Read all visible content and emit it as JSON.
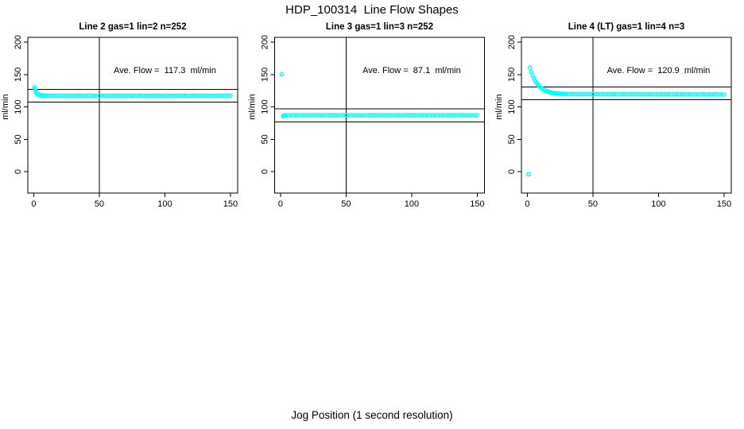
{
  "page": {
    "main_title": "HDP_100314  Line Flow Shapes",
    "footer_xlabel": "Jog Position (1 second resolution)"
  },
  "colors": {
    "points": "#00FFFF",
    "axis": "#000000",
    "background": "#FFFFFF"
  },
  "chart_data": [
    {
      "type": "scatter",
      "title": "Line 2 gas=1 lin=2 n=252",
      "annotation": "Ave. Flow =  117.3  ml/min",
      "ave_flow_ml_min": 117.3,
      "n": 252,
      "ylabel": "ml/min",
      "xlabel": "",
      "x_ticks": [
        0,
        50,
        100,
        150
      ],
      "y_ticks": [
        0,
        50,
        100,
        150,
        200
      ],
      "xlim": [
        -4.5,
        155.5
      ],
      "ylim": [
        -33,
        207.5
      ],
      "grid": false,
      "vline_x": 50,
      "hlines": [
        127.3,
        107.3
      ],
      "annotation_pos": [
        100,
        152
      ],
      "points": [
        [
          0.5,
          130.4
        ],
        [
          1,
          127.2
        ],
        [
          1.5,
          124.4
        ],
        [
          2,
          122.2
        ],
        [
          2.5,
          120.6
        ],
        [
          3,
          119.6
        ],
        [
          3.5,
          119.0
        ],
        [
          4,
          118.6
        ],
        [
          4.5,
          118.3
        ],
        [
          5,
          118.1
        ],
        [
          5.5,
          117.9
        ],
        [
          6,
          117.8
        ],
        [
          7,
          117.6
        ],
        [
          8,
          117.5
        ],
        [
          9,
          117.4
        ],
        [
          10,
          117.3
        ],
        [
          12,
          117.5
        ],
        [
          14,
          117.2
        ],
        [
          16,
          117.4
        ],
        [
          18,
          117.1
        ],
        [
          20,
          117.3
        ],
        [
          22,
          117.5
        ],
        [
          24,
          117.2
        ],
        [
          26,
          117.4
        ],
        [
          28,
          117.1
        ],
        [
          30,
          117.3
        ],
        [
          32,
          117.5
        ],
        [
          34,
          117.2
        ],
        [
          36,
          117.4
        ],
        [
          38,
          117.1
        ],
        [
          40,
          117.3
        ],
        [
          42,
          117.5
        ],
        [
          44,
          117.2
        ],
        [
          46,
          117.4
        ],
        [
          48,
          117.1
        ],
        [
          50,
          117.3
        ],
        [
          52,
          117.5
        ],
        [
          54,
          117.2
        ],
        [
          56,
          117.4
        ],
        [
          58,
          117.1
        ],
        [
          60,
          117.3
        ],
        [
          62,
          117.5
        ],
        [
          64,
          117.2
        ],
        [
          66,
          117.4
        ],
        [
          68,
          117.1
        ],
        [
          70,
          117.3
        ],
        [
          72,
          117.5
        ],
        [
          74,
          117.2
        ],
        [
          76,
          117.4
        ],
        [
          78,
          117.1
        ],
        [
          80,
          117.3
        ],
        [
          82,
          117.5
        ],
        [
          84,
          117.2
        ],
        [
          86,
          117.4
        ],
        [
          88,
          117.1
        ],
        [
          90,
          117.3
        ],
        [
          92,
          117.5
        ],
        [
          94,
          117.2
        ],
        [
          96,
          117.4
        ],
        [
          98,
          117.1
        ],
        [
          100,
          117.3
        ],
        [
          102,
          117.5
        ],
        [
          104,
          117.2
        ],
        [
          106,
          117.4
        ],
        [
          108,
          117.1
        ],
        [
          110,
          117.3
        ],
        [
          112,
          117.5
        ],
        [
          114,
          117.2
        ],
        [
          116,
          117.4
        ],
        [
          118,
          117.1
        ],
        [
          120,
          117.3
        ],
        [
          122,
          117.5
        ],
        [
          124,
          117.2
        ],
        [
          126,
          117.4
        ],
        [
          128,
          117.1
        ],
        [
          130,
          117.3
        ],
        [
          132,
          117.5
        ],
        [
          134,
          117.2
        ],
        [
          136,
          117.4
        ],
        [
          138,
          117.1
        ],
        [
          140,
          117.3
        ],
        [
          142,
          117.5
        ],
        [
          144,
          117.2
        ],
        [
          146,
          117.4
        ],
        [
          148,
          117.1
        ],
        [
          150,
          117.3
        ]
      ]
    },
    {
      "type": "scatter",
      "title": "Line 3 gas=1 lin=3 n=252",
      "annotation": "Ave. Flow =  87.1  ml/min",
      "ave_flow_ml_min": 87.1,
      "n": 252,
      "ylabel": "ml/min",
      "xlabel": "",
      "x_ticks": [
        0,
        50,
        100,
        150
      ],
      "y_ticks": [
        0,
        50,
        100,
        150,
        200
      ],
      "xlim": [
        -4.5,
        155.5
      ],
      "ylim": [
        -33,
        207.5
      ],
      "grid": false,
      "vline_x": 50,
      "hlines": [
        97.1,
        77.1
      ],
      "annotation_pos": [
        100,
        152
      ],
      "points": [
        [
          1,
          150.5
        ],
        [
          2,
          85.6
        ],
        [
          2.5,
          86.2
        ],
        [
          3,
          86.8
        ],
        [
          4,
          87.0
        ],
        [
          6,
          87.3
        ],
        [
          8,
          86.8
        ],
        [
          10,
          87.1
        ],
        [
          12,
          86.7
        ],
        [
          14,
          87.0
        ],
        [
          16,
          87.3
        ],
        [
          18,
          86.8
        ],
        [
          20,
          87.1
        ],
        [
          22,
          86.7
        ],
        [
          24,
          87.0
        ],
        [
          26,
          87.3
        ],
        [
          28,
          86.8
        ],
        [
          30,
          87.1
        ],
        [
          32,
          86.7
        ],
        [
          34,
          87.0
        ],
        [
          36,
          87.3
        ],
        [
          38,
          86.8
        ],
        [
          40,
          87.1
        ],
        [
          42,
          86.7
        ],
        [
          44,
          87.0
        ],
        [
          46,
          87.3
        ],
        [
          48,
          86.8
        ],
        [
          50,
          87.1
        ],
        [
          52,
          86.7
        ],
        [
          54,
          87.0
        ],
        [
          56,
          87.3
        ],
        [
          58,
          86.8
        ],
        [
          60,
          87.1
        ],
        [
          62,
          86.7
        ],
        [
          64,
          87.0
        ],
        [
          66,
          87.3
        ],
        [
          68,
          86.8
        ],
        [
          70,
          87.1
        ],
        [
          72,
          86.7
        ],
        [
          74,
          87.0
        ],
        [
          76,
          87.3
        ],
        [
          78,
          86.8
        ],
        [
          80,
          87.1
        ],
        [
          82,
          86.7
        ],
        [
          84,
          87.0
        ],
        [
          86,
          87.3
        ],
        [
          88,
          86.8
        ],
        [
          90,
          87.1
        ],
        [
          92,
          86.7
        ],
        [
          94,
          87.0
        ],
        [
          96,
          87.3
        ],
        [
          98,
          86.8
        ],
        [
          100,
          87.1
        ],
        [
          102,
          86.7
        ],
        [
          104,
          87.0
        ],
        [
          106,
          87.3
        ],
        [
          108,
          86.8
        ],
        [
          110,
          87.1
        ],
        [
          112,
          86.7
        ],
        [
          114,
          87.0
        ],
        [
          116,
          87.3
        ],
        [
          118,
          86.8
        ],
        [
          120,
          87.1
        ],
        [
          122,
          86.7
        ],
        [
          124,
          87.0
        ],
        [
          126,
          87.3
        ],
        [
          128,
          86.8
        ],
        [
          130,
          87.1
        ],
        [
          132,
          86.7
        ],
        [
          134,
          87.0
        ],
        [
          136,
          87.3
        ],
        [
          138,
          86.8
        ],
        [
          140,
          87.1
        ],
        [
          142,
          86.7
        ],
        [
          144,
          87.0
        ],
        [
          146,
          87.3
        ],
        [
          148,
          86.8
        ],
        [
          150,
          87.1
        ]
      ]
    },
    {
      "type": "scatter",
      "title": "Line 4 (LT) gas=1 lin=4 n=3",
      "annotation": "Ave. Flow =  120.9  ml/min",
      "ave_flow_ml_min": 120.9,
      "n": 3,
      "ylabel": "ml/min",
      "xlabel": "",
      "x_ticks": [
        0,
        50,
        100,
        150
      ],
      "y_ticks": [
        0,
        50,
        100,
        150,
        200
      ],
      "xlim": [
        -4.5,
        155.5
      ],
      "ylim": [
        -33,
        207.5
      ],
      "grid": false,
      "vline_x": 50,
      "hlines": [
        130.9,
        110.9
      ],
      "annotation_pos": [
        100,
        152
      ],
      "points": [
        [
          1,
          -4
        ],
        [
          2,
          160.6
        ],
        [
          3,
          154.3
        ],
        [
          4,
          149.0
        ],
        [
          5,
          144.5
        ],
        [
          6,
          140.6
        ],
        [
          7,
          137.4
        ],
        [
          8,
          134.7
        ],
        [
          9,
          132.4
        ],
        [
          10,
          130.4
        ],
        [
          11,
          128.7
        ],
        [
          12,
          127.3
        ],
        [
          13,
          126.2
        ],
        [
          14,
          125.1
        ],
        [
          15,
          124.3
        ],
        [
          16,
          123.6
        ],
        [
          17,
          123.0
        ],
        [
          18,
          122.4
        ],
        [
          19,
          122.0
        ],
        [
          20,
          121.6
        ],
        [
          21,
          121.3
        ],
        [
          22,
          121.1
        ],
        [
          23,
          120.8
        ],
        [
          24,
          120.6
        ],
        [
          25,
          120.5
        ],
        [
          26,
          120.4
        ],
        [
          27,
          120.2
        ],
        [
          28,
          120.1
        ],
        [
          29,
          120.1
        ],
        [
          30,
          120.0
        ],
        [
          32,
          119.9
        ],
        [
          34,
          120.1
        ],
        [
          36,
          119.7
        ],
        [
          38,
          120.0
        ],
        [
          40,
          119.6
        ],
        [
          42,
          119.9
        ],
        [
          44,
          120.0
        ],
        [
          46,
          119.7
        ],
        [
          48,
          119.9
        ],
        [
          50,
          119.6
        ],
        [
          52,
          119.8
        ],
        [
          54,
          120.0
        ],
        [
          56,
          119.6
        ],
        [
          58,
          119.9
        ],
        [
          60,
          119.5
        ],
        [
          62,
          119.8
        ],
        [
          64,
          119.9
        ],
        [
          66,
          119.6
        ],
        [
          68,
          119.8
        ],
        [
          70,
          119.5
        ],
        [
          72,
          119.7
        ],
        [
          74,
          119.9
        ],
        [
          76,
          119.5
        ],
        [
          78,
          119.8
        ],
        [
          80,
          119.4
        ],
        [
          82,
          119.7
        ],
        [
          84,
          119.8
        ],
        [
          86,
          119.5
        ],
        [
          88,
          119.7
        ],
        [
          90,
          119.4
        ],
        [
          92,
          119.6
        ],
        [
          94,
          119.8
        ],
        [
          96,
          119.4
        ],
        [
          98,
          119.7
        ],
        [
          100,
          119.3
        ],
        [
          102,
          119.6
        ],
        [
          104,
          119.7
        ],
        [
          106,
          119.4
        ],
        [
          108,
          119.6
        ],
        [
          110,
          119.3
        ],
        [
          112,
          119.5
        ],
        [
          114,
          119.7
        ],
        [
          116,
          119.3
        ],
        [
          118,
          119.6
        ],
        [
          120,
          119.2
        ],
        [
          122,
          119.5
        ],
        [
          124,
          119.6
        ],
        [
          126,
          119.3
        ],
        [
          128,
          119.5
        ],
        [
          130,
          119.2
        ],
        [
          132,
          119.4
        ],
        [
          134,
          119.6
        ],
        [
          136,
          119.2
        ],
        [
          138,
          119.5
        ],
        [
          140,
          119.1
        ],
        [
          142,
          119.4
        ],
        [
          144,
          119.5
        ],
        [
          146,
          119.2
        ],
        [
          148,
          119.4
        ],
        [
          150,
          119.1
        ]
      ]
    }
  ]
}
